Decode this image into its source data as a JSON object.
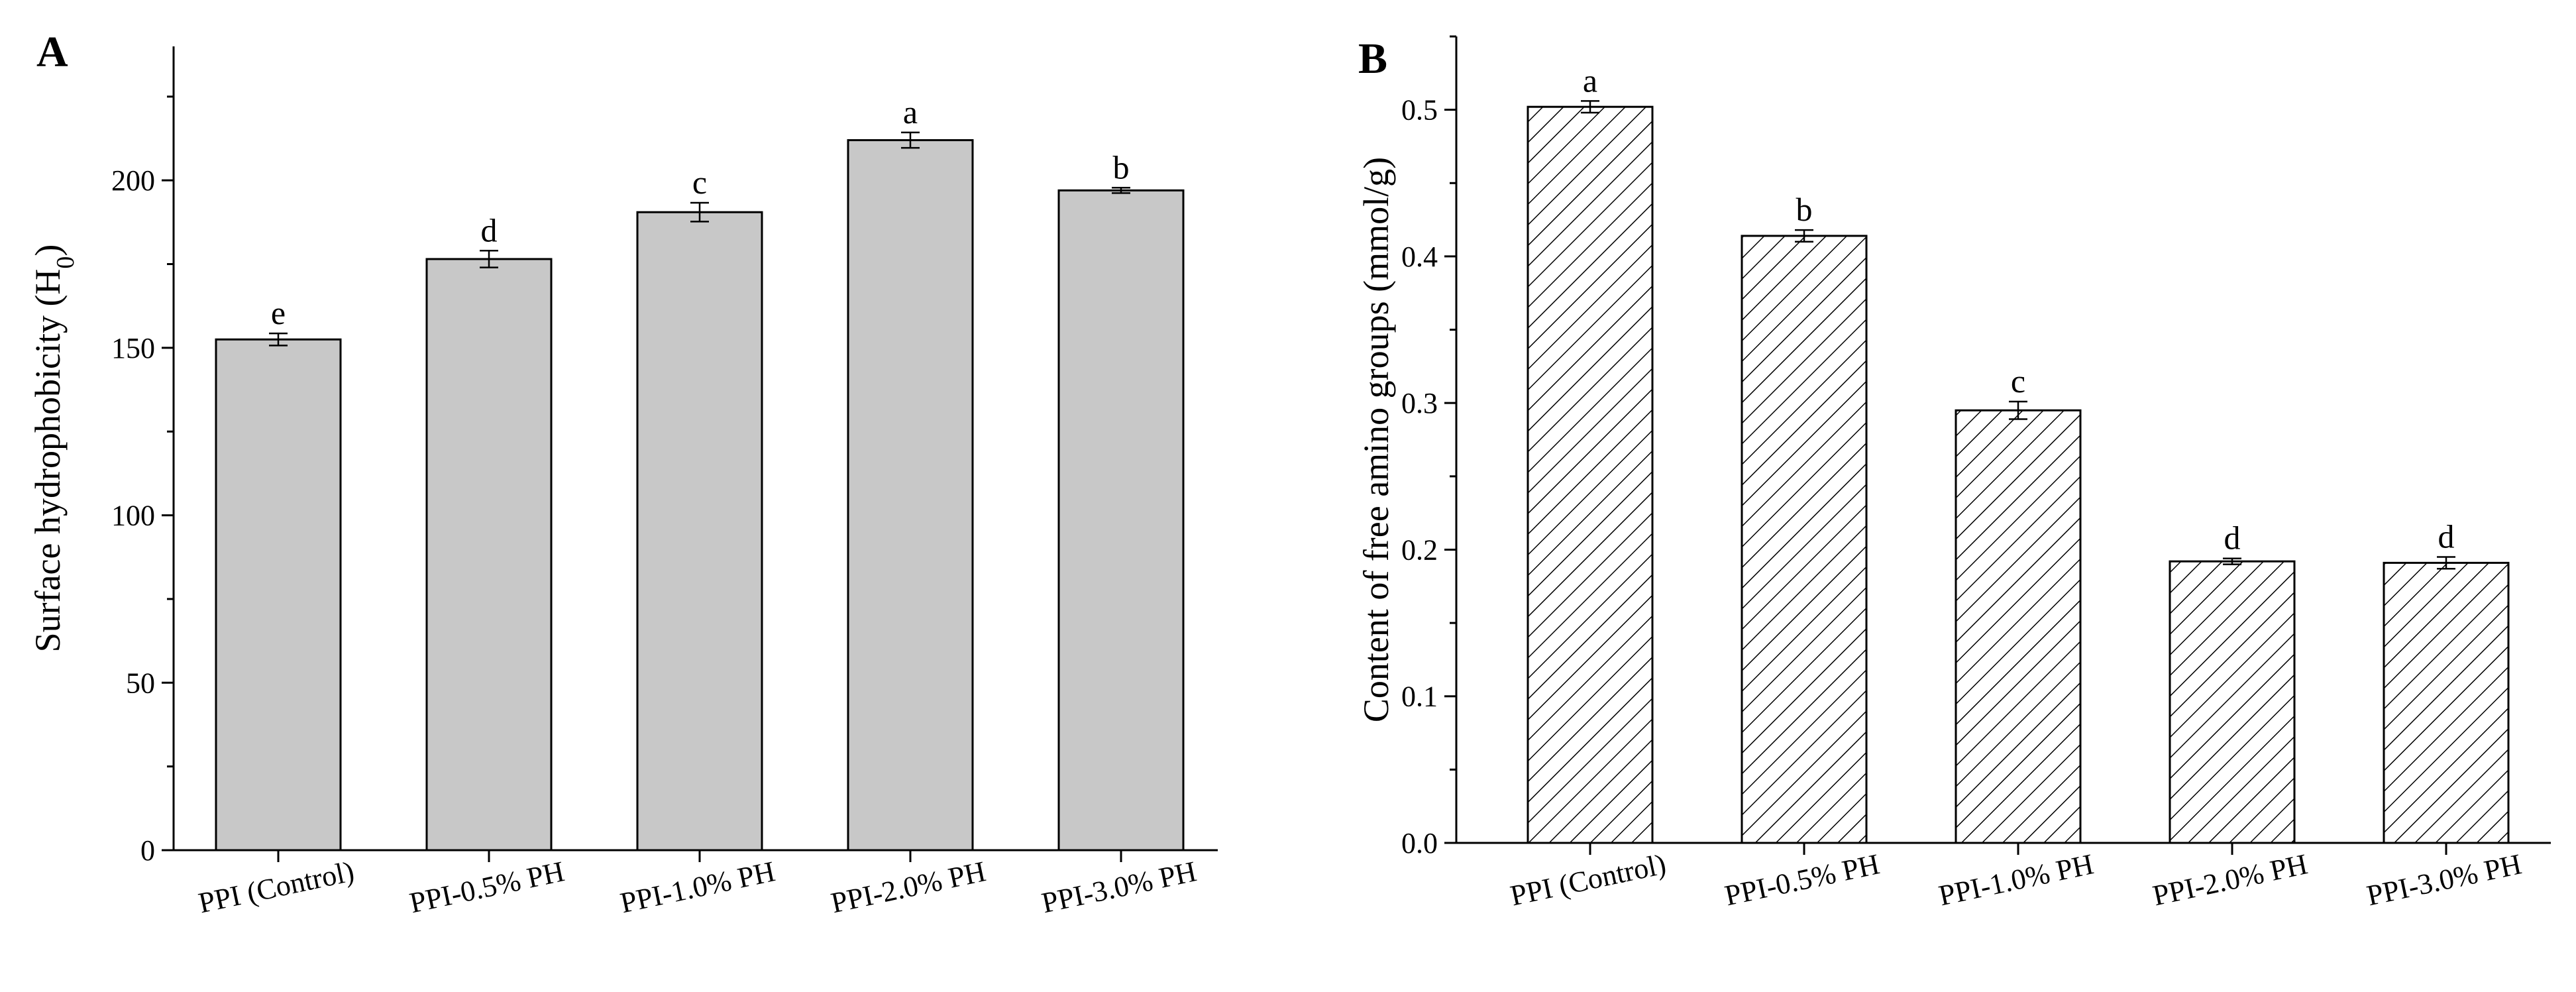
{
  "chart_data": [
    {
      "type": "bar",
      "panel": "A",
      "title": "",
      "xlabel": "",
      "ylabel": "Surface hydrophobicity (H",
      "ylabel_subscript": "0",
      "ylabel_suffix": ")",
      "ylim": [
        0,
        240
      ],
      "yticks": [
        0,
        50,
        100,
        150,
        200
      ],
      "ytick_labels": [
        "0",
        "50",
        "100",
        "150",
        "200"
      ],
      "categories": [
        "PPI (Control)",
        "PPI-0.5% PH",
        "PPI-1.0% PH",
        "PPI-2.0% PH",
        "PPI-3.0% PH"
      ],
      "values": [
        152.5,
        176.5,
        190.5,
        212.0,
        197.0
      ],
      "errors": [
        1.8,
        2.5,
        2.8,
        2.3,
        0.8
      ],
      "letters": [
        "e",
        "d",
        "c",
        "a",
        "b"
      ],
      "fill": "#c8c8c8"
    },
    {
      "type": "bar",
      "panel": "B",
      "title": "",
      "xlabel": "",
      "ylabel": "Content of free amino groups (mmol/g)",
      "ylim": [
        0,
        0.55
      ],
      "yticks": [
        0.0,
        0.1,
        0.2,
        0.3,
        0.4,
        0.5
      ],
      "ytick_labels": [
        "0.0",
        "0.1",
        "0.2",
        "0.3",
        "0.4",
        "0.5"
      ],
      "categories": [
        "PPI (Control)",
        "PPI-0.5% PH",
        "PPI-1.0% PH",
        "PPI-2.0% PH",
        "PPI-3.0% PH"
      ],
      "values": [
        0.502,
        0.414,
        0.295,
        0.192,
        0.191
      ],
      "errors": [
        0.004,
        0.004,
        0.006,
        0.002,
        0.004
      ],
      "letters": [
        "a",
        "b",
        "c",
        "d",
        "d"
      ],
      "fill": "hatch"
    }
  ]
}
